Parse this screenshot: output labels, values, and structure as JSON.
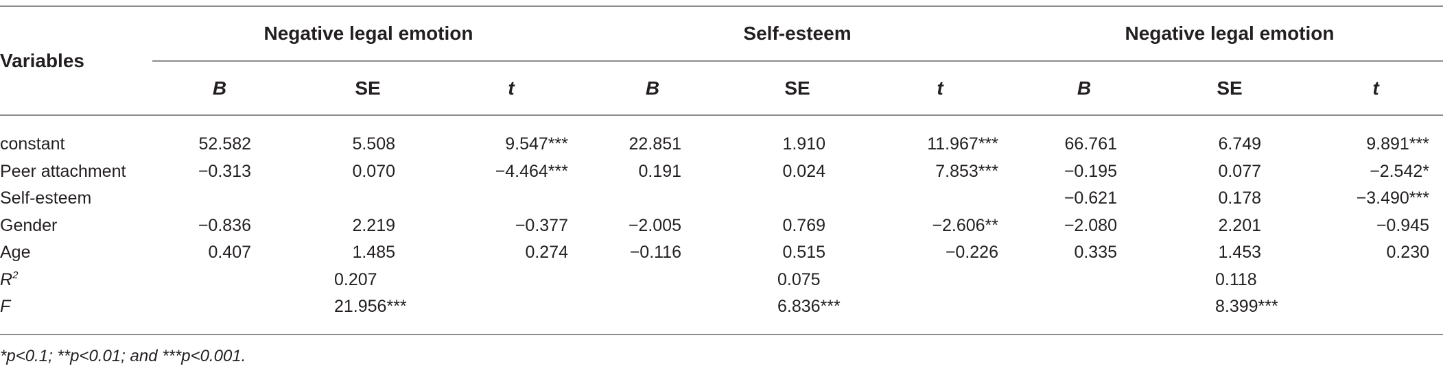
{
  "table": {
    "row_header": "Variables",
    "groups": [
      "Negative legal emotion",
      "Self-esteem",
      "Negative legal emotion"
    ],
    "subheaders": [
      "B",
      "SE",
      "t",
      "B",
      "SE",
      "t",
      "B",
      "SE",
      "t"
    ],
    "rows": [
      {
        "label": "constant",
        "cells": [
          "52.582",
          "5.508",
          "9.547***",
          "22.851",
          "1.910",
          "11.967***",
          "66.761",
          "6.749",
          "9.891***"
        ]
      },
      {
        "label": "Peer attachment",
        "cells": [
          "−0.313",
          "0.070",
          "−4.464***",
          "0.191",
          "0.024",
          "7.853***",
          "−0.195",
          "0.077",
          "−2.542*"
        ]
      },
      {
        "label": "Self-esteem",
        "cells": [
          "",
          "",
          "",
          "",
          "",
          "",
          "−0.621",
          "0.178",
          "−3.490***"
        ]
      },
      {
        "label": "Gender",
        "cells": [
          "−0.836",
          "2.219",
          "−0.377",
          "−2.005",
          "0.769",
          "−2.606**",
          "−2.080",
          "2.201",
          "−0.945"
        ]
      },
      {
        "label": "Age",
        "cells": [
          "0.407",
          "1.485",
          "0.274",
          "−0.116",
          "0.515",
          "−0.226",
          "0.335",
          "1.453",
          "0.230"
        ]
      }
    ],
    "r2": {
      "label": "R",
      "sup": "2",
      "values": [
        "0.207",
        "0.075",
        "0.118"
      ]
    },
    "f": {
      "label": "F",
      "values": [
        "21.956***",
        "6.836***",
        "8.399***"
      ]
    }
  },
  "footnote": "*p<0.1; **p<0.01; and ***p<0.001."
}
